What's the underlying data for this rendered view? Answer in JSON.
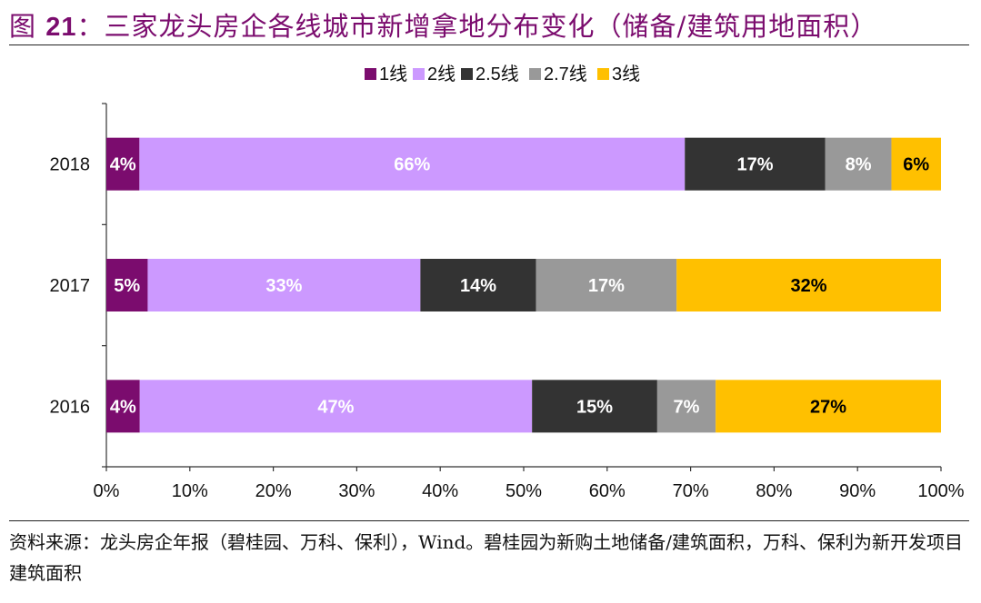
{
  "title": {
    "prefix": "图",
    "number": "21",
    "text": "：三家龙头房企各线城市新增拿地分布变化（储备/建筑用地面积）"
  },
  "source": {
    "text": "资料来源：龙头房企年报（碧桂园、万科、保利），Wind。碧桂园为新购土地储备/建筑面积，万科、保利为新开发项目建筑面积"
  },
  "chart_data": {
    "type": "bar",
    "orientation": "horizontal",
    "stacked": "percent",
    "categories": [
      "2018",
      "2017",
      "2016"
    ],
    "series": [
      {
        "name": "1线",
        "color": "#7b0c6e",
        "values": [
          4,
          5,
          4
        ],
        "labels": [
          "4%",
          "5%",
          "4%"
        ],
        "label_color": "#ffffff"
      },
      {
        "name": "2线",
        "color": "#cc99ff",
        "values": [
          66,
          33,
          47
        ],
        "labels": [
          "66%",
          "33%",
          "47%"
        ],
        "label_color": "#ffffff"
      },
      {
        "name": "2.5线",
        "color": "#333333",
        "values": [
          17,
          14,
          15
        ],
        "labels": [
          "17%",
          "14%",
          "15%"
        ],
        "label_color": "#ffffff"
      },
      {
        "name": "2.7线",
        "color": "#999999",
        "values": [
          8,
          17,
          7
        ],
        "labels": [
          "8%",
          "17%",
          "7%"
        ],
        "label_color": "#ffffff"
      },
      {
        "name": "3线",
        "color": "#ffc000",
        "values": [
          6,
          32,
          27
        ],
        "labels": [
          "6%",
          "32%",
          "27%"
        ],
        "label_color": "#000000"
      }
    ],
    "xlim": [
      0,
      100
    ],
    "x_ticks": [
      "0%",
      "10%",
      "20%",
      "30%",
      "40%",
      "50%",
      "60%",
      "70%",
      "80%",
      "90%",
      "100%"
    ],
    "legend_position": "top",
    "grid": false
  }
}
